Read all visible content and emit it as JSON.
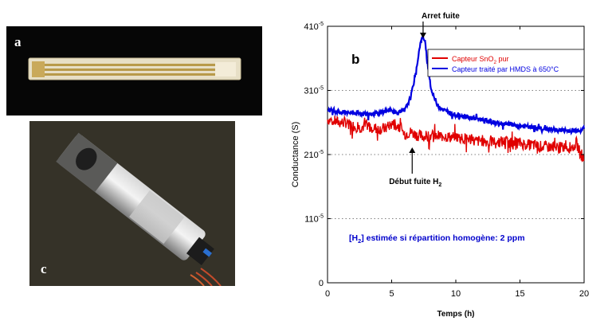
{
  "figure": {
    "panel_a_label": "a",
    "panel_b_label": "b",
    "panel_c_label": "c",
    "photo_a_bg": "#060606",
    "photo_c_bg": "#2e2c22"
  },
  "chart_data": {
    "type": "line",
    "xlabel": "Temps (h)",
    "ylabel": "Conductance (S)",
    "xlim": [
      0,
      20
    ],
    "ylim": [
      0,
      4e-05
    ],
    "xticks": [
      "0",
      "5",
      "10",
      "15",
      "20"
    ],
    "yticks": [
      {
        "value": 0,
        "label": "0"
      },
      {
        "value": 1e-05,
        "mant": "1",
        "exp": "-5"
      },
      {
        "value": 2e-05,
        "mant": "2",
        "exp": "-5"
      },
      {
        "value": 3e-05,
        "mant": "3",
        "exp": "-5"
      },
      {
        "value": 4e-05,
        "mant": "4",
        "exp": "-5"
      }
    ],
    "grid": "horizontal-dotted",
    "legend_position": "top-right",
    "series": [
      {
        "name": "Capteur SnO2 pur",
        "name_parts": [
          "Capteur SnO",
          "2",
          " pur"
        ],
        "color": "#e00000",
        "noise": 0.09,
        "x": [
          0,
          0.5,
          1,
          1.5,
          2,
          2.5,
          3,
          3.5,
          4,
          4.5,
          5,
          5.5,
          6,
          6.5,
          7,
          7.5,
          8,
          8.5,
          9,
          9.5,
          10,
          10.5,
          11,
          11.5,
          12,
          12.5,
          13,
          13.5,
          14,
          14.5,
          15,
          15.5,
          16,
          16.5,
          17,
          17.5,
          18,
          18.5,
          19,
          19.4,
          19.7,
          20
        ],
        "y": [
          2.55e-05,
          2.52e-05,
          2.5e-05,
          2.5e-05,
          2.45e-05,
          2.42e-05,
          2.45e-05,
          2.42e-05,
          2.4e-05,
          2.4e-05,
          2.48e-05,
          2.45e-05,
          2.32e-05,
          2.35e-05,
          2.3e-05,
          2.28e-05,
          2.3e-05,
          2.28e-05,
          2.3e-05,
          2.27e-05,
          2.28e-05,
          2.25e-05,
          2.25e-05,
          2.2e-05,
          2.22e-05,
          2.2e-05,
          2.2e-05,
          2.2e-05,
          2.2e-05,
          2.18e-05,
          2.18e-05,
          2.15e-05,
          2.15e-05,
          2.13e-05,
          2.12e-05,
          2.12e-05,
          2.1e-05,
          2.12e-05,
          2.1e-05,
          2.18e-05,
          2.02e-05,
          1.9e-05
        ]
      },
      {
        "name": "Capteur traité par HMDS à 650°C",
        "name_parts": [
          "Capteur  traité par HMDS à 650°C"
        ],
        "color": "#0000e0",
        "noise": 0.035,
        "x": [
          0,
          1,
          2,
          3,
          4,
          4.8,
          5.3,
          6,
          6.5,
          6.9,
          7.2,
          7.45,
          7.6,
          7.8,
          8.1,
          8.5,
          9,
          9.5,
          10,
          11,
          12,
          13,
          14,
          15,
          16,
          17,
          18,
          19,
          20
        ],
        "y": [
          2.7e-05,
          2.66e-05,
          2.65e-05,
          2.63e-05,
          2.64e-05,
          2.7e-05,
          2.65e-05,
          2.68e-05,
          2.9e-05,
          3.3e-05,
          3.7e-05,
          3.85e-05,
          3.75e-05,
          3.4e-05,
          3e-05,
          2.8e-05,
          2.7e-05,
          2.65e-05,
          2.62e-05,
          2.58e-05,
          2.55e-05,
          2.5e-05,
          2.47e-05,
          2.45e-05,
          2.42e-05,
          2.4e-05,
          2.38e-05,
          2.37e-05,
          2.4e-05
        ]
      }
    ],
    "annotations": {
      "stop": {
        "text": "Arret fuite",
        "x": 7.45
      },
      "start": {
        "text_parts": [
          "Début fuite H",
          "2"
        ],
        "x": 6.6
      },
      "note": {
        "text_parts": [
          "[H",
          "2",
          "] estimée si répartition homogène: 2 ppm"
        ],
        "color": "#0000cc"
      }
    }
  }
}
